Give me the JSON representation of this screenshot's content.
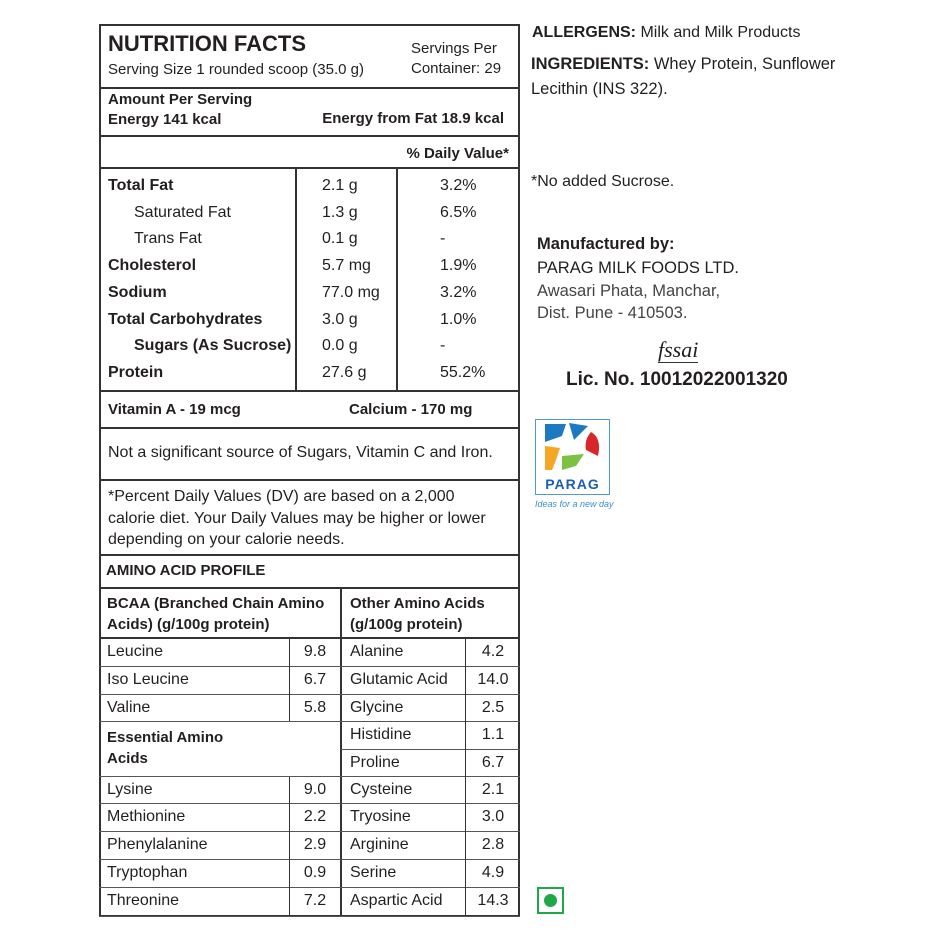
{
  "header": {
    "title": "NUTRITION FACTS",
    "serving_size": "Serving Size 1 rounded scoop (35.0 g)",
    "servings_per_1": "Servings Per",
    "servings_per_2": "Container: 29"
  },
  "amount": {
    "label": "Amount Per Serving",
    "energy": "Energy 141 kcal",
    "energy_fat": "Energy from Fat 18.9 kcal"
  },
  "dv_header": "% Daily Value*",
  "nutrients": [
    {
      "name": "Total Fat",
      "amount": "2.1 g",
      "dv": "3.2%",
      "bold": true,
      "indent": false
    },
    {
      "name": "Saturated Fat",
      "amount": "1.3 g",
      "dv": "6.5%",
      "bold": false,
      "indent": true
    },
    {
      "name": "Trans Fat",
      "amount": "0.1 g",
      "dv": "-",
      "bold": false,
      "indent": true
    },
    {
      "name": "Cholesterol",
      "amount": "5.7 mg",
      "dv": "1.9%",
      "bold": true,
      "indent": false
    },
    {
      "name": "Sodium",
      "amount": "77.0 mg",
      "dv": "3.2%",
      "bold": true,
      "indent": false
    },
    {
      "name": "Total Carbohydrates",
      "amount": "3.0 g",
      "dv": "1.0%",
      "bold": true,
      "indent": false
    },
    {
      "name": "Sugars (As Sucrose)",
      "amount": "0.0 g",
      "dv": "-",
      "bold": true,
      "indent": true
    },
    {
      "name": "Protein",
      "amount": "27.6 g",
      "dv": "55.2%",
      "bold": true,
      "indent": false
    }
  ],
  "vitamin_a": "Vitamin A - 19 mcg",
  "calcium": "Calcium - 170 mg",
  "not_significant": "Not a significant source of Sugars, Vitamin C and Iron.",
  "footnote": [
    "*Percent Daily Values (DV) are based on a 2,000",
    "calorie diet. Your Daily Values may be higher or lower",
    "depending on your calorie needs."
  ],
  "amino": {
    "title": "AMINO ACID PROFILE",
    "bcaa_header": [
      "BCAA (Branched Chain Amino",
      "Acids) (g/100g protein)"
    ],
    "other_header": [
      "Other Amino Acids",
      "(g/100g protein)"
    ],
    "essential_header": [
      "Essential Amino",
      "Acids"
    ],
    "bcaa": [
      [
        "Leucine",
        "9.8"
      ],
      [
        "Iso Leucine",
        "6.7"
      ],
      [
        "Valine",
        "5.8"
      ]
    ],
    "essential": [
      [
        "Lysine",
        "9.0"
      ],
      [
        "Methionine",
        "2.2"
      ],
      [
        "Phenylalanine",
        "2.9"
      ],
      [
        "Tryptophan",
        "0.9"
      ],
      [
        "Threonine",
        "7.2"
      ]
    ],
    "other": [
      [
        "Alanine",
        "4.2"
      ],
      [
        "Glutamic Acid",
        "14.0"
      ],
      [
        "Glycine",
        "2.5"
      ],
      [
        "Histidine",
        "1.1"
      ],
      [
        "Proline",
        "6.7"
      ],
      [
        "Cysteine",
        "2.1"
      ],
      [
        "Tryosine",
        "3.0"
      ],
      [
        "Arginine",
        "2.8"
      ],
      [
        "Serine",
        "4.9"
      ],
      [
        "Aspartic Acid",
        "14.3"
      ]
    ]
  },
  "right": {
    "allergens_label": "ALLERGENS:",
    "allergens": " Milk and Milk Products",
    "ingredients_label": "INGREDIENTS:",
    "ingredients_1": " Whey Protein, Sunflower",
    "ingredients_2": "Lecithin (INS 322).",
    "no_sucrose": "*No added Sucrose.",
    "manufactured_by": "Manufactured by:",
    "company": "PARAG MILK FOODS LTD.",
    "address_1": "Awasari Phata, Manchar,",
    "address_2": "Dist. Pune - 410503.",
    "fssai_logo": "fssai",
    "license": "Lic. No. 10012022001320",
    "brand": "PARAG",
    "tagline": "Ideas for a new day",
    "veg_color": "#1fa84a"
  }
}
